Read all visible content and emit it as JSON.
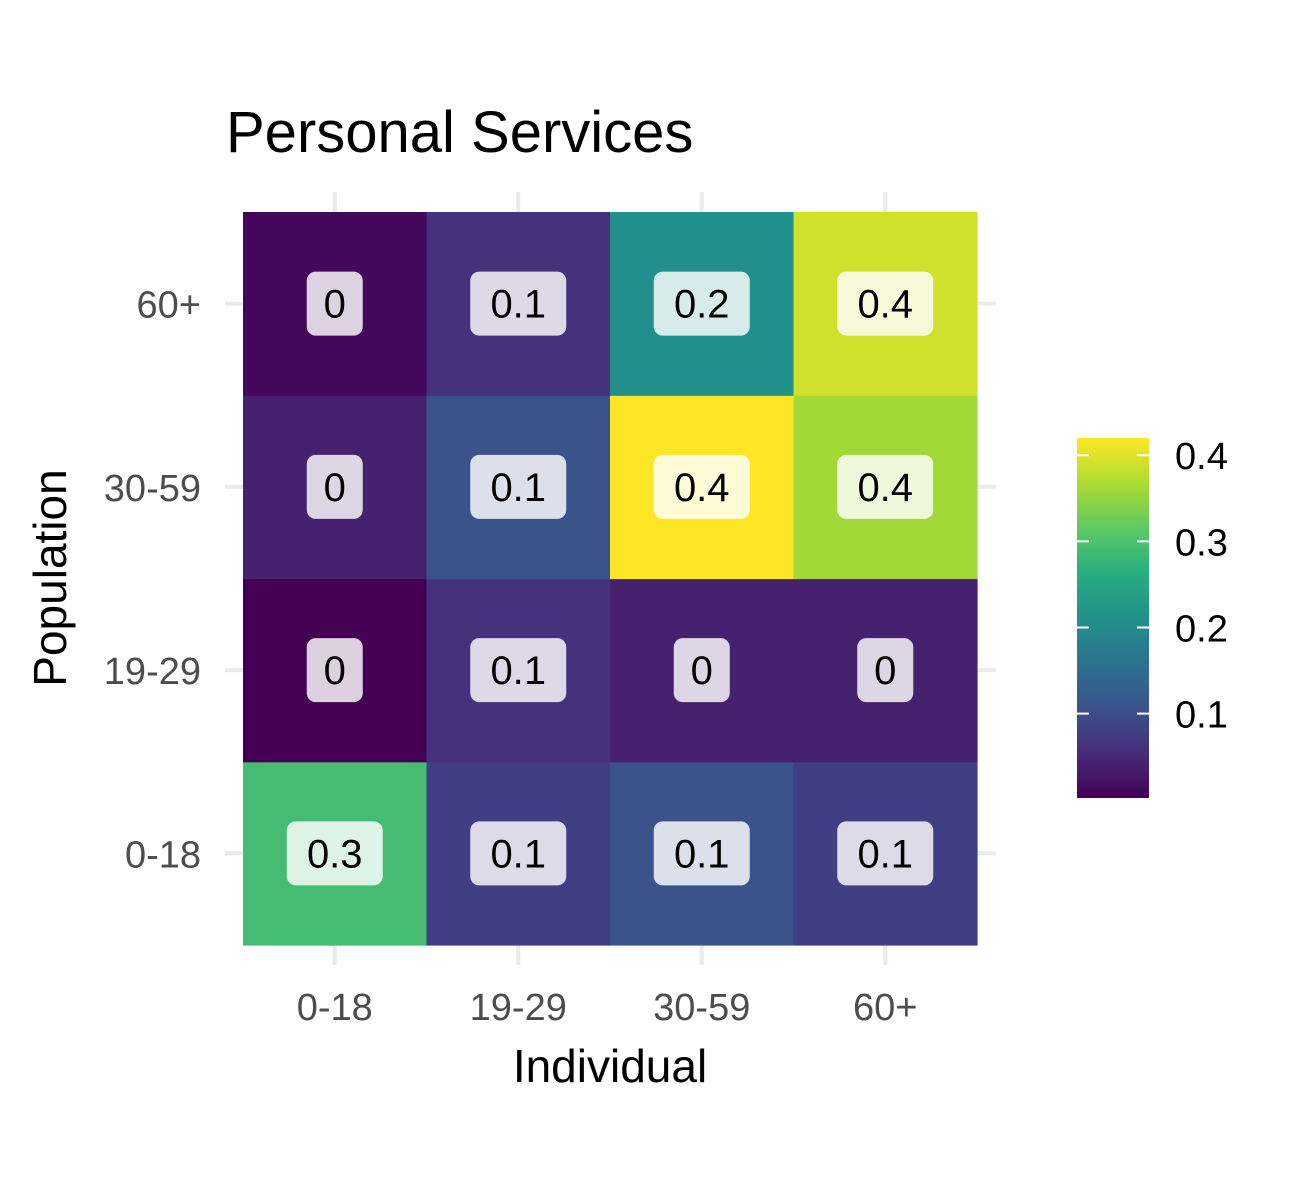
{
  "chart_data": {
    "type": "heatmap",
    "title": "Personal Services",
    "xlabel": "Individual",
    "ylabel": "Population",
    "x_categories": [
      "0-18",
      "19-29",
      "30-59",
      "60+"
    ],
    "y_categories": [
      "0-18",
      "19-29",
      "30-59",
      "60+"
    ],
    "values": [
      [
        0.29,
        0.08,
        0.11,
        0.08
      ],
      [
        0.002,
        0.06,
        0.04,
        0.04
      ],
      [
        0.04,
        0.11,
        0.42,
        0.36
      ],
      [
        0.01,
        0.06,
        0.21,
        0.39
      ]
    ],
    "cell_labels": [
      [
        "0.3",
        "0.1",
        "0.1",
        "0.1"
      ],
      [
        "0",
        "0.1",
        "0",
        "0"
      ],
      [
        "0",
        "0.1",
        "0.4",
        "0.4"
      ],
      [
        "0",
        "0.1",
        "0.2",
        "0.4"
      ]
    ],
    "colorscale": "viridis",
    "color_range": [
      0.002,
      0.42
    ],
    "legend": {
      "ticks": [
        0.1,
        0.2,
        0.3,
        0.4
      ],
      "tick_labels": [
        "0.1",
        "0.2",
        "0.3",
        "0.4"
      ],
      "position": "right"
    },
    "grid": true
  }
}
